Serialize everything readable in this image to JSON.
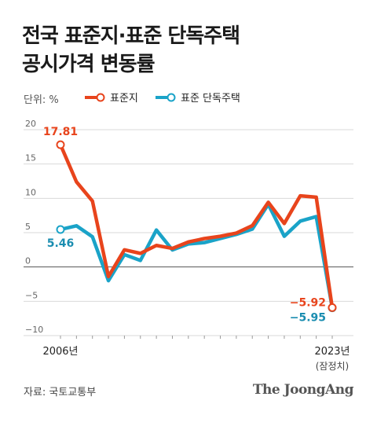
{
  "title": {
    "line1": "전국 표준지·표준 단독주택",
    "line2": "공시가격 변동률"
  },
  "unit_label": "단위: %",
  "legend": [
    {
      "label": "표준지",
      "color": "#e8441c"
    },
    {
      "label": "표준 단독주택",
      "color": "#1aa3c8"
    }
  ],
  "source": "자료: 국토교통부",
  "brand": "The JoongAng",
  "chart_data": {
    "type": "line",
    "x": [
      2006,
      2007,
      2008,
      2009,
      2010,
      2011,
      2012,
      2013,
      2014,
      2015,
      2016,
      2017,
      2018,
      2019,
      2020,
      2021,
      2022,
      2023
    ],
    "x_tick_labels": [
      {
        "x": 2006,
        "text": "2006년"
      },
      {
        "x": 2023,
        "text": "2023년"
      }
    ],
    "x_tick_note": "(잠정치)",
    "series": [
      {
        "name": "표준지",
        "color": "#e8441c",
        "values": [
          17.81,
          12.4,
          9.6,
          -1.4,
          2.5,
          1.98,
          3.14,
          2.7,
          3.64,
          4.14,
          4.47,
          4.94,
          6.02,
          9.42,
          6.33,
          10.37,
          10.17,
          -5.92
        ]
      },
      {
        "name": "표준 단독주택",
        "color": "#1aa3c8",
        "values": [
          5.46,
          6.0,
          4.4,
          -2.0,
          1.8,
          0.95,
          5.38,
          2.48,
          3.35,
          3.55,
          4.15,
          4.75,
          5.51,
          9.13,
          4.47,
          6.68,
          7.34,
          -5.95
        ]
      }
    ],
    "annotations": [
      {
        "series": 0,
        "x": 2006,
        "text": "17.81",
        "color": "#e8441c"
      },
      {
        "series": 1,
        "x": 2006,
        "text": "5.46",
        "color": "#1a8db0"
      },
      {
        "series": 0,
        "x": 2023,
        "text": "−5.92",
        "color": "#e8441c"
      },
      {
        "series": 1,
        "x": 2023,
        "text": "−5.95",
        "color": "#1a8db0"
      }
    ],
    "yticks": [
      20,
      15,
      10,
      5,
      0,
      -5,
      -10
    ],
    "ytick_labels": [
      "20",
      "15",
      "10",
      "5",
      "0",
      "−5",
      "−10"
    ],
    "ylim": [
      -10,
      20
    ],
    "grid": true,
    "legend_position": "top-left"
  }
}
